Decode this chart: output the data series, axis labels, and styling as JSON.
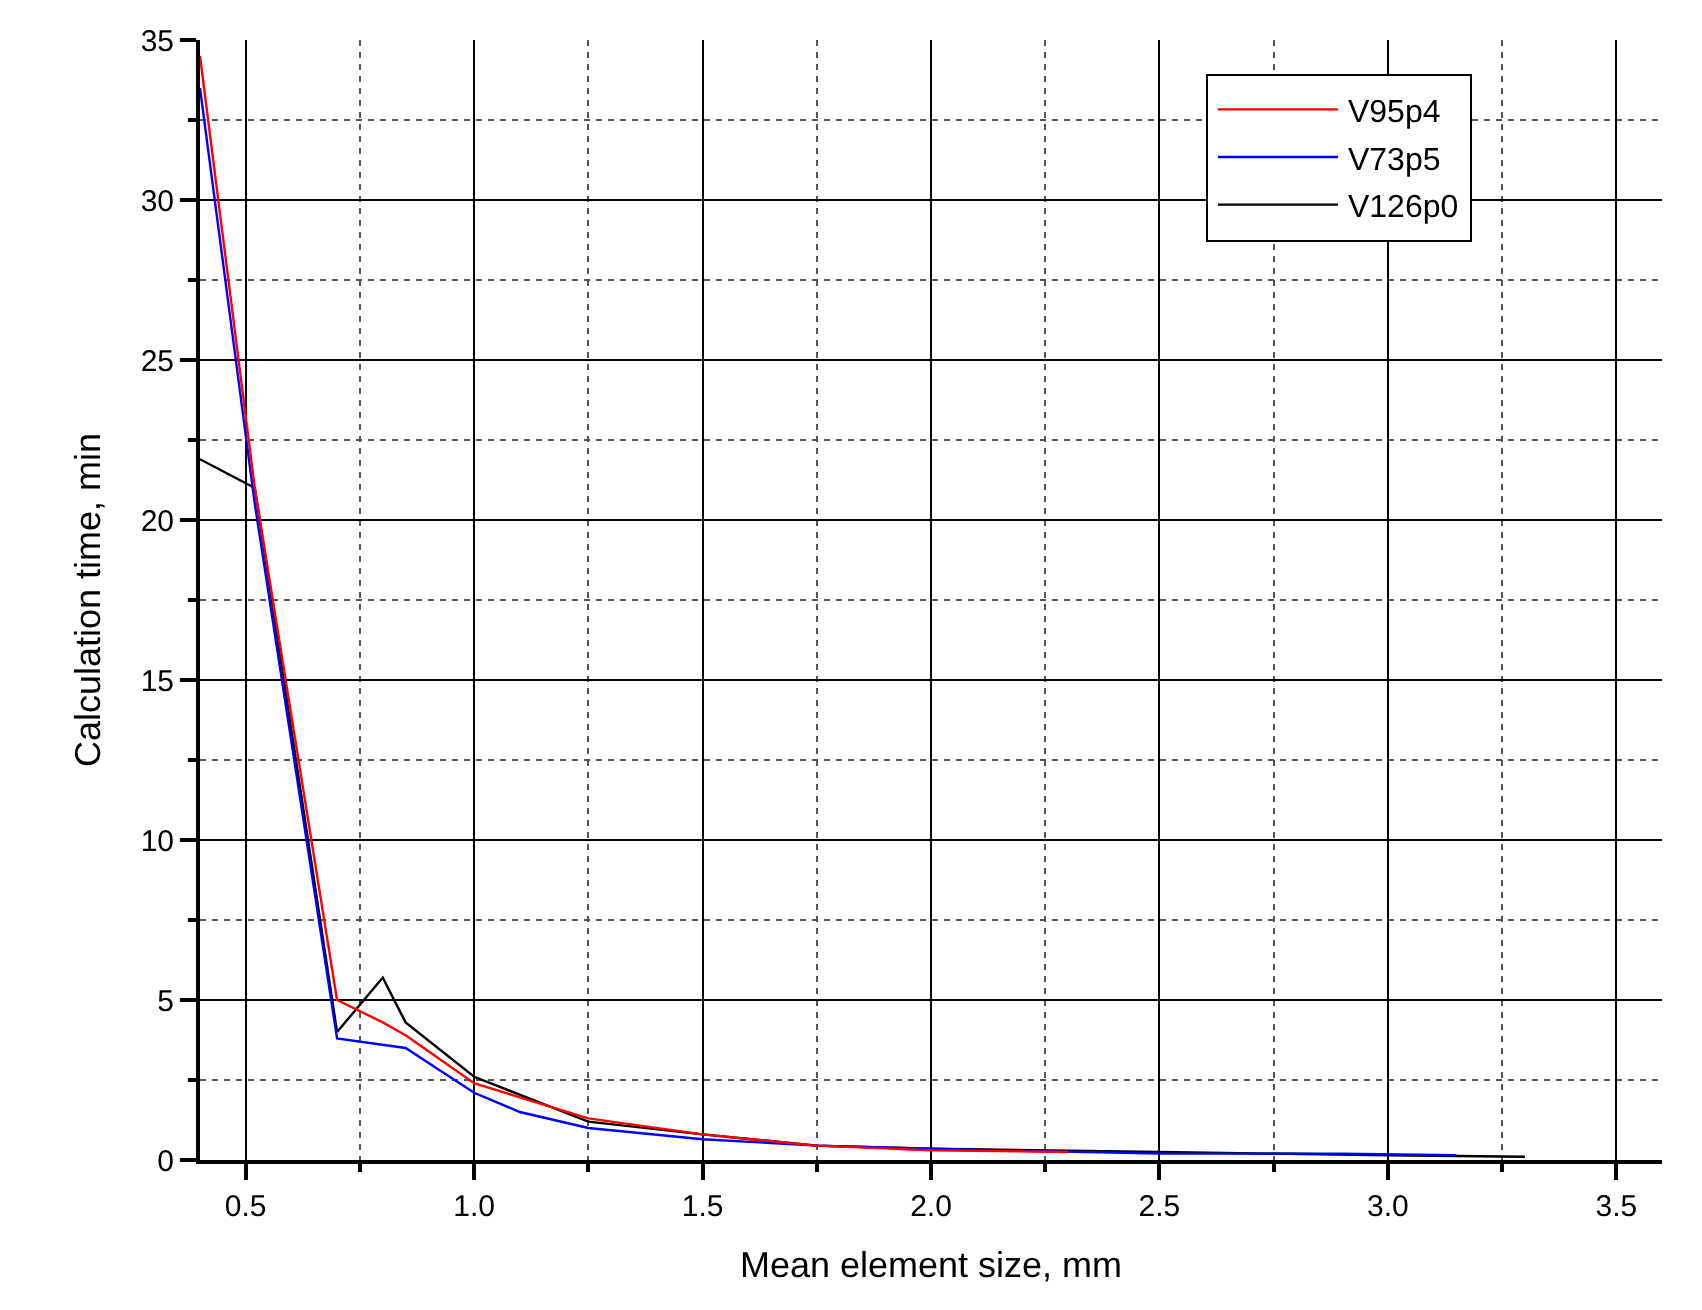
{
  "chart_data": {
    "type": "line",
    "xlabel": "Mean element size, mm",
    "ylabel": "Calculation time, min",
    "xlim": [
      0.4,
      3.6
    ],
    "xticks": [
      0.5,
      {
        "value": 1,
        "label": "1.0"
      },
      1.5,
      {
        "value": 2,
        "label": "2.0"
      },
      2.5,
      {
        "value": 3,
        "label": "3.0"
      },
      3.5
    ],
    "ylim": [
      0,
      35
    ],
    "yticks": [
      0,
      5,
      10,
      15,
      20,
      25,
      30,
      35
    ],
    "grid": true,
    "legend": "top right",
    "marker": "none",
    "line_style": "solid",
    "series": [
      {
        "name": "V95p4",
        "color": "#ff0000",
        "x": [
          0.4,
          0.52,
          0.7,
          0.8,
          0.85,
          1.0,
          1.25,
          1.5,
          1.75,
          2.0,
          2.3
        ],
        "values": [
          34.5,
          21,
          5.0,
          4.3,
          3.9,
          2.4,
          1.3,
          0.8,
          0.45,
          0.3,
          0.25
        ]
      },
      {
        "name": "V73p5",
        "color": "#0000ff",
        "x": [
          0.4,
          0.52,
          0.7,
          0.85,
          1.0,
          1.1,
          1.25,
          1.5,
          1.75,
          2.0,
          2.5,
          2.9,
          3.15
        ],
        "values": [
          33.5,
          20.5,
          3.8,
          3.5,
          2.1,
          1.5,
          1.0,
          0.65,
          0.45,
          0.35,
          0.2,
          0.2,
          0.15
        ]
      },
      {
        "name": "V126p0",
        "color": "#000000",
        "x": [
          0.4,
          0.52,
          0.7,
          0.8,
          0.85,
          1.0,
          1.25,
          1.5,
          1.75,
          2.0,
          2.5,
          3.0,
          3.3
        ],
        "values": [
          21.9,
          21,
          4.0,
          5.7,
          4.3,
          2.6,
          1.2,
          0.8,
          0.45,
          0.35,
          0.25,
          0.15,
          0.1
        ]
      }
    ]
  }
}
